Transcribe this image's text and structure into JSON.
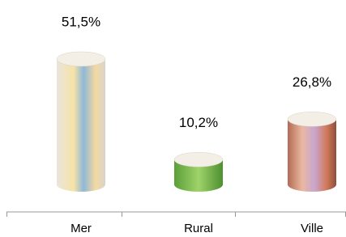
{
  "chart_data": {
    "type": "bar",
    "categories": [
      "Mer",
      "Rural",
      "Ville"
    ],
    "values": [
      51.5,
      10.2,
      26.8
    ],
    "value_labels": [
      "51,5%",
      "10,2%",
      "26,8%"
    ]
  }
}
